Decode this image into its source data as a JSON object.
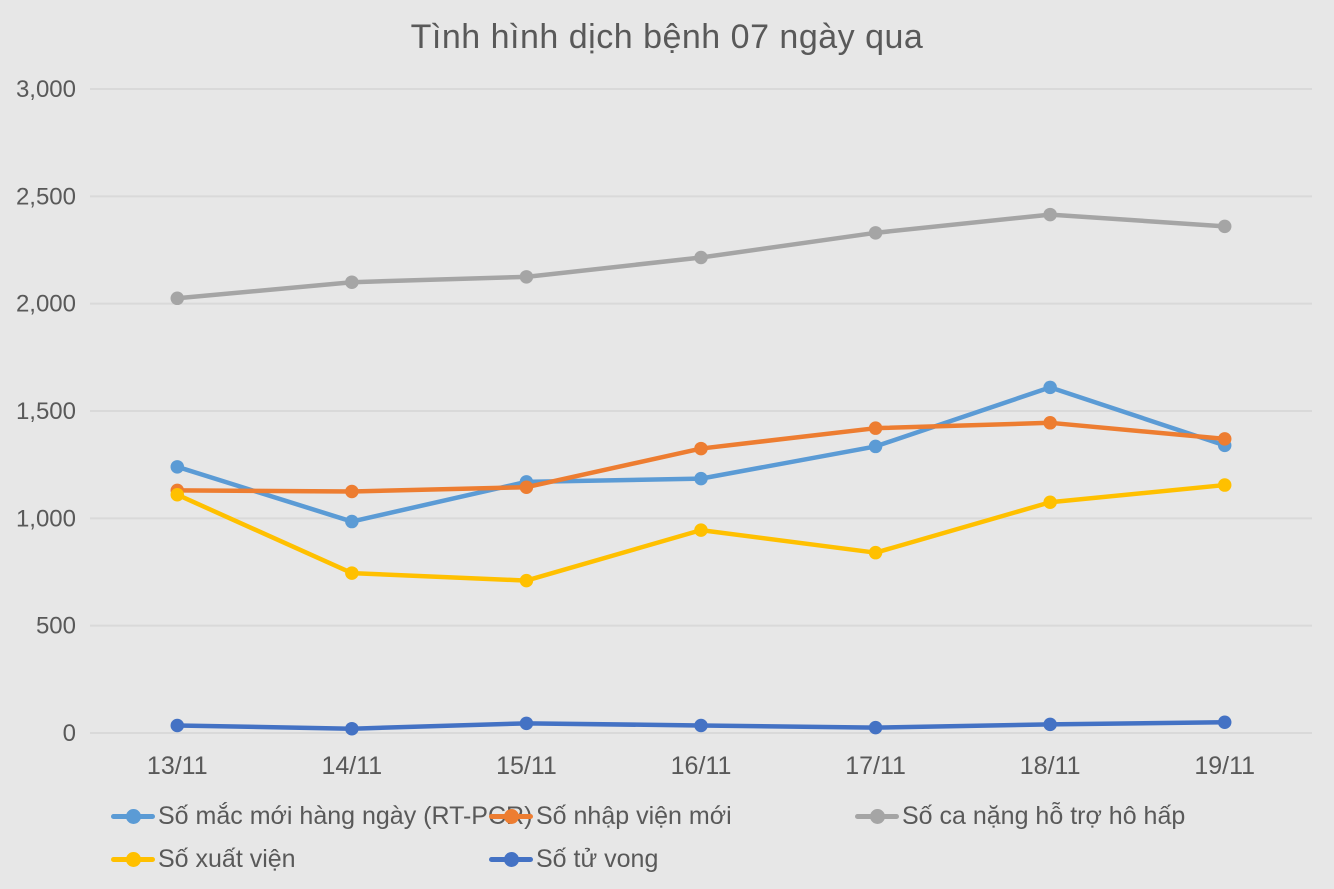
{
  "chart_data": {
    "type": "line",
    "title": "Tình hình dịch bệnh 07 ngày qua",
    "categories": [
      "13/11",
      "14/11",
      "15/11",
      "16/11",
      "17/11",
      "18/11",
      "19/11"
    ],
    "series": [
      {
        "name": "Số mắc mới hàng ngày (RT-PCR)",
        "color": "#5B9BD5",
        "values": [
          1240,
          985,
          1170,
          1185,
          1335,
          1610,
          1340
        ]
      },
      {
        "name": "Số nhập viện mới",
        "color": "#ED7D31",
        "values": [
          1130,
          1125,
          1145,
          1325,
          1420,
          1445,
          1370
        ]
      },
      {
        "name": "Số ca nặng hỗ trợ hô hấp",
        "color": "#A5A5A5",
        "values": [
          2025,
          2100,
          2125,
          2215,
          2330,
          2415,
          2360
        ]
      },
      {
        "name": "Số xuất viện",
        "color": "#FFC000",
        "values": [
          1110,
          745,
          710,
          945,
          840,
          1075,
          1155
        ]
      },
      {
        "name": "Số tử vong",
        "color": "#4472C4",
        "values": [
          35,
          20,
          45,
          35,
          25,
          40,
          50
        ]
      }
    ],
    "yticks": [
      {
        "value": 0,
        "label": "0"
      },
      {
        "value": 500,
        "label": "500"
      },
      {
        "value": 1000,
        "label": "1,000"
      },
      {
        "value": 1500,
        "label": "1,500"
      },
      {
        "value": 2000,
        "label": "2,000"
      },
      {
        "value": 2500,
        "label": "2,500"
      },
      {
        "value": 3000,
        "label": "3,000"
      }
    ],
    "ylim": [
      0,
      3000
    ],
    "grid": "horizontal",
    "legend_position": "bottom",
    "colors": {
      "background": "#E7E7E7",
      "gridline": "#D9D9D9",
      "text": "#595959"
    }
  }
}
